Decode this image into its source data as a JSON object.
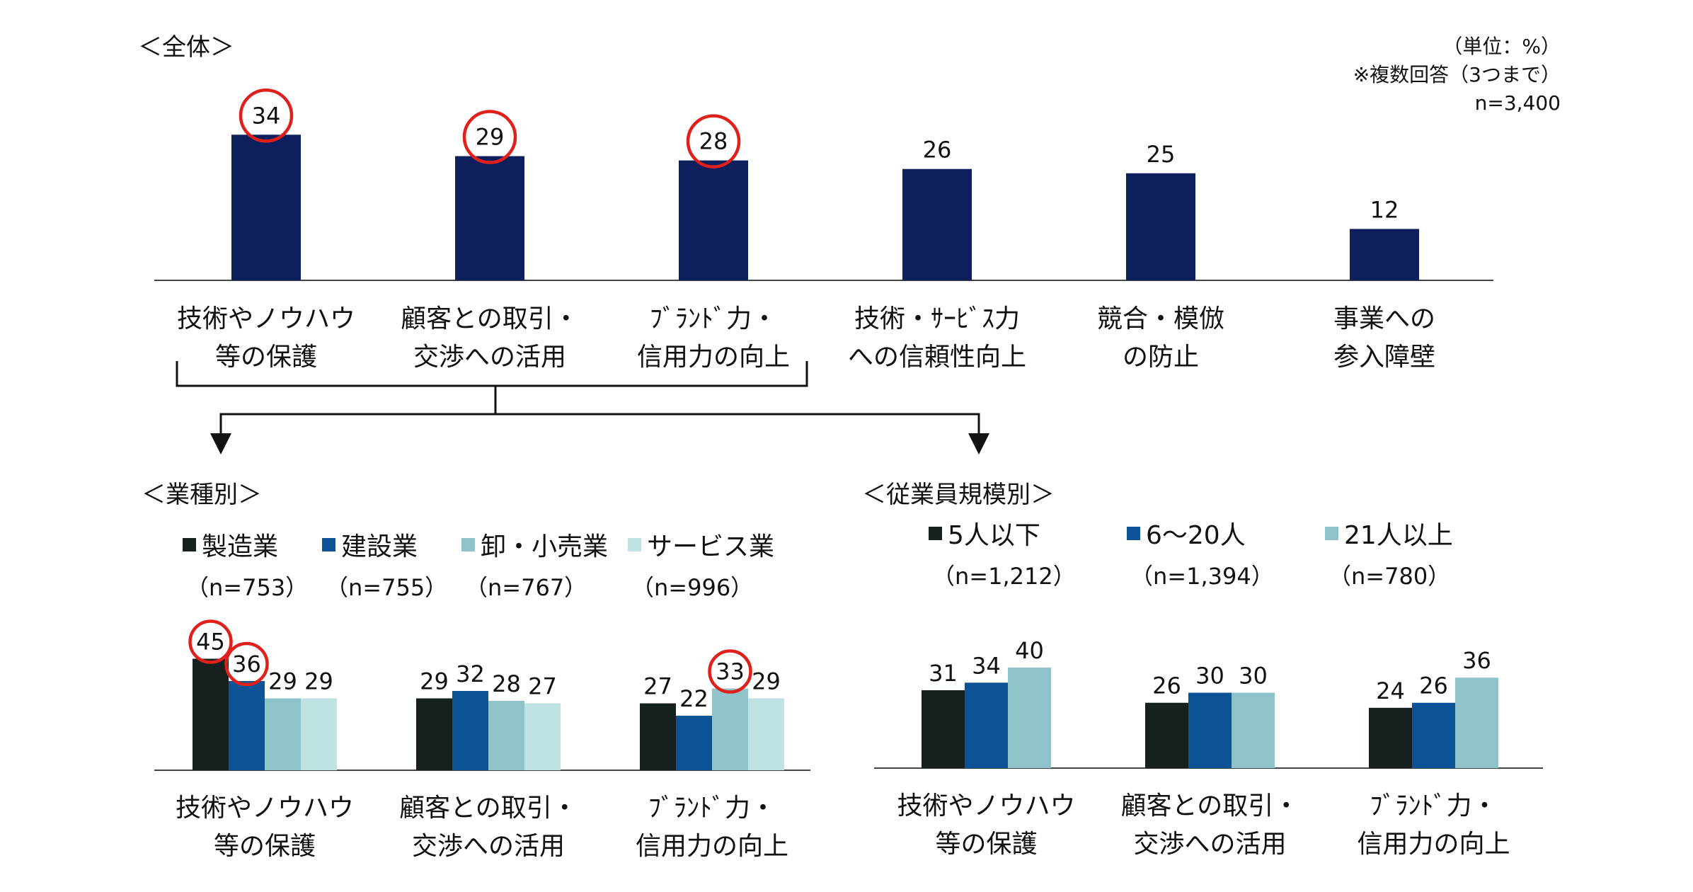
{
  "colors": {
    "overall_bar": "#0d1f5c",
    "circle": "#e0201b",
    "axis": "#444444",
    "industry": [
      "#16211f",
      "#0b5396",
      "#8ec3c9",
      "#bfe2e3"
    ],
    "size": [
      "#16211f",
      "#0b5396",
      "#8ec3c9"
    ]
  },
  "overall": {
    "title": "＜全体＞",
    "notes": [
      "（単位：%）",
      "※複数回答（3つまで）",
      "n=3,400"
    ]
  },
  "industry": {
    "title": "＜業種別＞"
  },
  "size": {
    "title": "＜従業員規模別＞"
  },
  "chart_data": [
    {
      "type": "bar",
      "title": "＜全体＞",
      "categories": [
        [
          "技術やノウハウ",
          "等の保護"
        ],
        [
          "顧客との取引・",
          "交渉への活用"
        ],
        [
          "ﾌﾞﾗﾝﾄﾞ力・",
          "信用力の向上"
        ],
        [
          "技術・ｻｰﾋﾞｽ力",
          "への信頼性向上"
        ],
        [
          "競合・模倣",
          "の防止"
        ],
        [
          "事業への",
          "参入障壁"
        ]
      ],
      "values": [
        34,
        29,
        28,
        26,
        25,
        12
      ],
      "highlighted": [
        true,
        true,
        true,
        false,
        false,
        false
      ],
      "ylim": [
        0,
        45
      ]
    },
    {
      "type": "bar",
      "title": "＜業種別＞",
      "categories": [
        [
          "技術やノウハウ",
          "等の保護"
        ],
        [
          "顧客との取引・",
          "交渉への活用"
        ],
        [
          "ﾌﾞﾗﾝﾄﾞ力・",
          "信用力の向上"
        ]
      ],
      "series": [
        {
          "name": "製造業",
          "n": "（n=753）",
          "values": [
            45,
            29,
            27
          ],
          "highlighted": [
            true,
            false,
            false
          ]
        },
        {
          "name": "建設業",
          "n": "（n=755）",
          "values": [
            36,
            32,
            22
          ],
          "highlighted": [
            true,
            false,
            false
          ]
        },
        {
          "name": "卸・小売業",
          "n": "（n=767）",
          "values": [
            29,
            28,
            33
          ],
          "highlighted": [
            false,
            false,
            true
          ]
        },
        {
          "name": "サービス業",
          "n": "（n=996）",
          "values": [
            29,
            27,
            29
          ],
          "highlighted": [
            false,
            false,
            false
          ]
        }
      ],
      "ylim": [
        0,
        50
      ]
    },
    {
      "type": "bar",
      "title": "＜従業員規模別＞",
      "categories": [
        [
          "技術やノウハウ",
          "等の保護"
        ],
        [
          "顧客との取引・",
          "交渉への活用"
        ],
        [
          "ﾌﾞﾗﾝﾄﾞ力・",
          "信用力の向上"
        ]
      ],
      "series": [
        {
          "name": "5人以下",
          "n": "（n=1,212）",
          "values": [
            31,
            26,
            24
          ],
          "highlighted": [
            false,
            false,
            false
          ]
        },
        {
          "name": "6～20人",
          "n": "（n=1,394）",
          "values": [
            34,
            30,
            26
          ],
          "highlighted": [
            false,
            false,
            false
          ]
        },
        {
          "name": "21人以上",
          "n": "（n=780）",
          "values": [
            40,
            30,
            36
          ],
          "highlighted": [
            false,
            false,
            false
          ]
        }
      ],
      "ylim": [
        0,
        50
      ]
    }
  ]
}
